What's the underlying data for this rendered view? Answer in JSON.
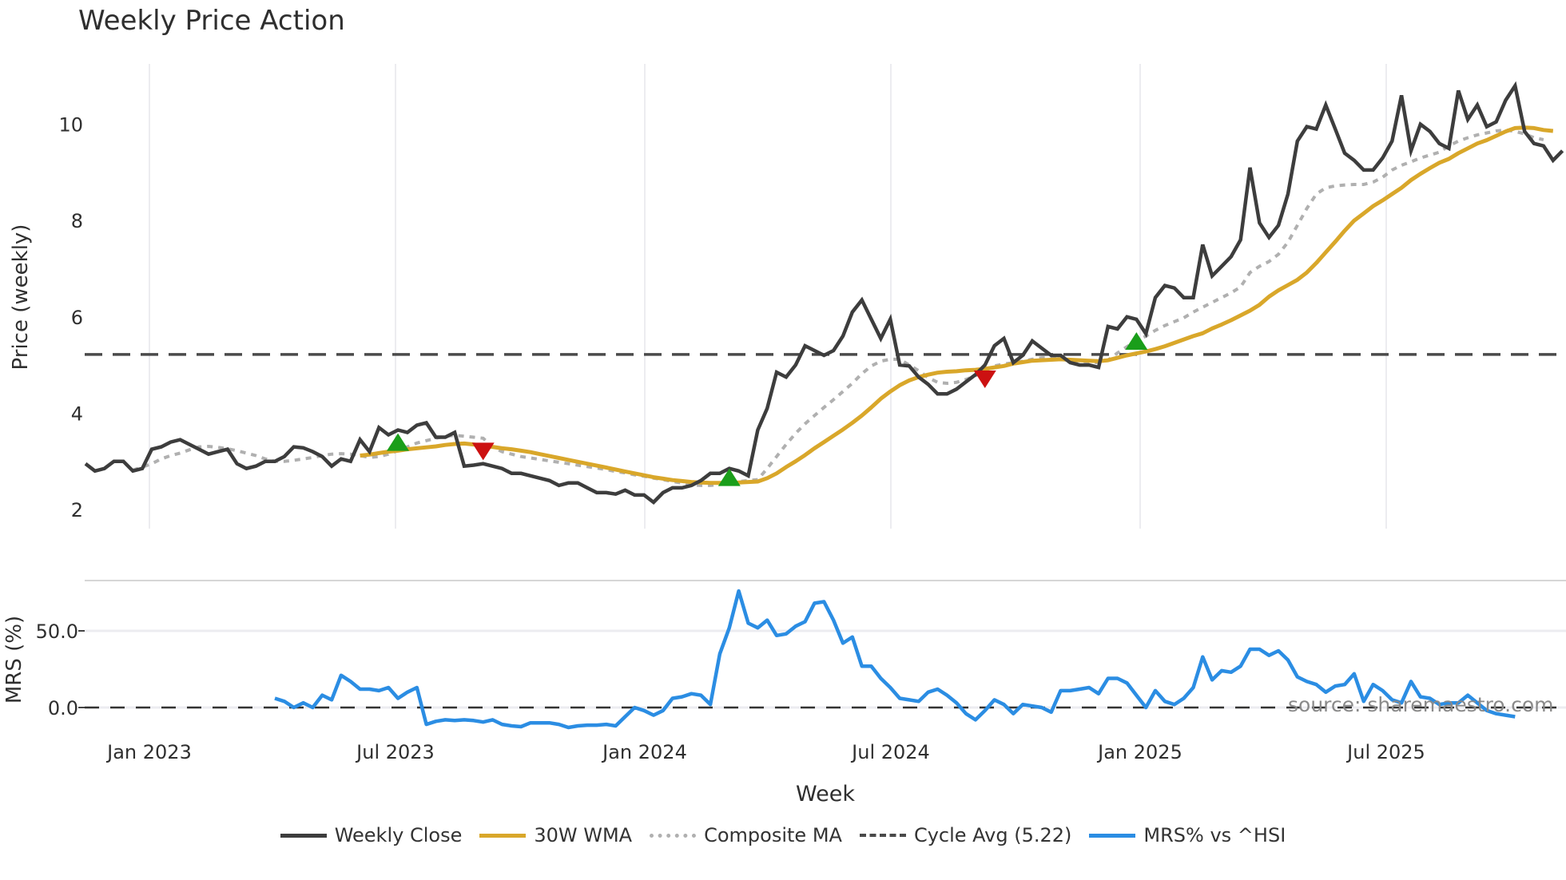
{
  "title": "Weekly Price Action",
  "source_label": "source: sharemaestro.com",
  "colors": {
    "close": "#3d3d3d",
    "wma": "#d9a72a",
    "composite": "#b0b0b0",
    "cycle": "#4a4a4a",
    "mrs": "#2b8de3",
    "buy": "#1a9e1a",
    "sell": "#cc1111",
    "grid": "#ececf0"
  },
  "legend": [
    {
      "label": "Weekly Close",
      "key": "close",
      "style": "solid"
    },
    {
      "label": "30W WMA",
      "key": "wma",
      "style": "solid"
    },
    {
      "label": "Composite MA",
      "key": "composite",
      "style": "dotted"
    },
    {
      "label": "Cycle Avg (5.22)",
      "key": "cycle",
      "style": "dashed"
    },
    {
      "label": "MRS% vs ^HSI",
      "key": "mrs",
      "style": "solid"
    }
  ],
  "chart_data": [
    {
      "type": "line",
      "title": "Weekly Price Action",
      "xlabel": "Week",
      "ylabel": "Price (weekly)",
      "x_tick_labels": [
        "Jan 2023",
        "Jul 2023",
        "Jan 2024",
        "Jul 2024",
        "Jan 2025",
        "Jul 2025"
      ],
      "y_ticks": [
        2,
        4,
        6,
        8,
        10
      ],
      "ylim": [
        1.7,
        11.2
      ],
      "grid": true,
      "legend_position": "bottom",
      "x_start": "2022-11-14",
      "x_step": "1 week",
      "cycle_avg": 5.22,
      "series": [
        {
          "name": "Weekly Close",
          "values": [
            2.95,
            2.8,
            2.85,
            3.0,
            3.0,
            2.8,
            2.85,
            3.25,
            3.3,
            3.4,
            3.45,
            3.35,
            3.25,
            3.15,
            3.2,
            3.25,
            2.95,
            2.85,
            2.9,
            3.0,
            3.0,
            3.1,
            3.3,
            3.28,
            3.2,
            3.1,
            2.9,
            3.05,
            3.0,
            3.45,
            3.2,
            3.7,
            3.55,
            3.65,
            3.6,
            3.75,
            3.8,
            3.5,
            3.5,
            3.6,
            2.9,
            2.92,
            2.95,
            2.9,
            2.85,
            2.75,
            2.75,
            2.7,
            2.65,
            2.6,
            2.5,
            2.55,
            2.55,
            2.45,
            2.35,
            2.35,
            2.32,
            2.4,
            2.3,
            2.3,
            2.15,
            2.35,
            2.45,
            2.45,
            2.5,
            2.6,
            2.75,
            2.75,
            2.85,
            2.8,
            2.7,
            3.65,
            4.1,
            4.85,
            4.75,
            5.0,
            5.4,
            5.3,
            5.2,
            5.3,
            5.6,
            6.1,
            6.35,
            5.95,
            5.55,
            5.95,
            5.0,
            4.98,
            4.75,
            4.6,
            4.4,
            4.4,
            4.5,
            4.65,
            4.8,
            5.0,
            5.4,
            5.55,
            5.05,
            5.2,
            5.5,
            5.35,
            5.2,
            5.2,
            5.05,
            5.0,
            5.0,
            4.95,
            5.8,
            5.75,
            6.0,
            5.95,
            5.65,
            6.4,
            6.65,
            6.6,
            6.4,
            6.4,
            7.5,
            6.85,
            7.05,
            7.25,
            7.6,
            9.1,
            7.95,
            7.65,
            7.9,
            8.55,
            9.65,
            9.95,
            9.9,
            10.4,
            9.9,
            9.4,
            9.25,
            9.05,
            9.05,
            9.3,
            9.65,
            10.6,
            9.45,
            10.0,
            9.85,
            9.6,
            9.5,
            10.7,
            10.1,
            10.4,
            9.95,
            10.05,
            10.5,
            10.8,
            9.85,
            9.6,
            9.55,
            9.25,
            9.45
          ]
        },
        {
          "name": "30W WMA",
          "start_index": 29,
          "values": [
            3.12,
            3.14,
            3.17,
            3.2,
            3.22,
            3.25,
            3.27,
            3.29,
            3.31,
            3.34,
            3.36,
            3.37,
            3.35,
            3.32,
            3.3,
            3.27,
            3.25,
            3.22,
            3.19,
            3.15,
            3.11,
            3.07,
            3.03,
            2.99,
            2.95,
            2.91,
            2.87,
            2.83,
            2.79,
            2.75,
            2.71,
            2.67,
            2.64,
            2.61,
            2.59,
            2.57,
            2.56,
            2.55,
            2.55,
            2.55,
            2.56,
            2.57,
            2.58,
            2.65,
            2.75,
            2.88,
            3.0,
            3.13,
            3.27,
            3.4,
            3.53,
            3.66,
            3.8,
            3.95,
            4.12,
            4.3,
            4.45,
            4.58,
            4.68,
            4.75,
            4.8,
            4.84,
            4.86,
            4.87,
            4.89,
            4.9,
            4.92,
            4.95,
            4.98,
            5.03,
            5.06,
            5.09,
            5.1,
            5.11,
            5.12,
            5.11,
            5.1,
            5.09,
            5.08,
            5.1,
            5.15,
            5.2,
            5.24,
            5.28,
            5.33,
            5.39,
            5.46,
            5.53,
            5.6,
            5.66,
            5.76,
            5.84,
            5.93,
            6.03,
            6.13,
            6.25,
            6.42,
            6.55,
            6.66,
            6.77,
            6.92,
            7.12,
            7.34,
            7.56,
            7.79,
            8.0,
            8.15,
            8.3,
            8.42,
            8.55,
            8.68,
            8.84,
            8.97,
            9.09,
            9.2,
            9.28,
            9.4,
            9.5,
            9.6,
            9.67,
            9.76,
            9.85,
            9.92,
            9.93,
            9.92,
            9.88,
            9.86
          ]
        },
        {
          "name": "Composite MA",
          "start_index": 5,
          "values": [
            2.82,
            2.88,
            2.95,
            3.05,
            3.12,
            3.17,
            3.24,
            3.3,
            3.31,
            3.29,
            3.26,
            3.22,
            3.17,
            3.12,
            3.05,
            3.0,
            3.0,
            3.02,
            3.05,
            3.08,
            3.12,
            3.15,
            3.16,
            3.15,
            3.12,
            3.08,
            3.1,
            3.15,
            3.22,
            3.3,
            3.38,
            3.43,
            3.48,
            3.52,
            3.54,
            3.52,
            3.5,
            3.48,
            3.3,
            3.2,
            3.15,
            3.1,
            3.07,
            3.04,
            3.01,
            2.98,
            2.95,
            2.92,
            2.89,
            2.86,
            2.83,
            2.79,
            2.76,
            2.72,
            2.69,
            2.65,
            2.62,
            2.58,
            2.55,
            2.51,
            2.5,
            2.5,
            2.52,
            2.55,
            2.58,
            2.6,
            2.62,
            2.85,
            3.1,
            3.35,
            3.58,
            3.78,
            3.95,
            4.12,
            4.28,
            4.45,
            4.62,
            4.82,
            4.98,
            5.08,
            5.12,
            5.12,
            5.0,
            4.88,
            4.74,
            4.64,
            4.62,
            4.64,
            4.7,
            4.78,
            4.88,
            4.98,
            5.02,
            5.05,
            5.08,
            5.12,
            5.15,
            5.15,
            5.12,
            5.1,
            5.08,
            5.06,
            5.05,
            5.1,
            5.25,
            5.38,
            5.5,
            5.6,
            5.72,
            5.82,
            5.9,
            5.98,
            6.1,
            6.2,
            6.3,
            6.4,
            6.5,
            6.62,
            6.92,
            7.05,
            7.15,
            7.3,
            7.55,
            7.9,
            8.25,
            8.55,
            8.68,
            8.72,
            8.74,
            8.75,
            8.75,
            8.8,
            8.9,
            9.05,
            9.15,
            9.22,
            9.3,
            9.36,
            9.42,
            9.55,
            9.65,
            9.72,
            9.78,
            9.82,
            9.86,
            9.88,
            9.85,
            9.8,
            9.72,
            9.68
          ]
        }
      ],
      "markers": [
        {
          "type": "buy",
          "index": 33,
          "value": 3.35
        },
        {
          "type": "sell",
          "index": 42,
          "value": 3.22
        },
        {
          "type": "buy",
          "index": 68,
          "value": 2.62
        },
        {
          "type": "sell",
          "index": 95,
          "value": 4.72
        },
        {
          "type": "buy",
          "index": 111,
          "value": 5.45
        }
      ]
    },
    {
      "type": "line",
      "title": "MRS% vs ^HSI",
      "xlabel": "Week",
      "ylabel": "MRS (%)",
      "y_ticks": [
        0.0,
        50.0
      ],
      "y_tick_labels": [
        "0.0",
        "50.0"
      ],
      "ylim": [
        -12,
        82
      ],
      "zero_line": true,
      "series": [
        {
          "name": "MRS% vs ^HSI",
          "start_index": 20,
          "values": [
            6,
            4,
            0,
            3,
            0,
            8,
            5,
            21,
            17,
            12,
            12,
            11,
            13,
            6,
            10,
            13,
            -11,
            -9,
            -8,
            -8.5,
            -8,
            -8.5,
            -9.5,
            -8,
            -11,
            -12,
            -12.5,
            -10,
            -10,
            -10,
            -11,
            -13,
            -12,
            -11.5,
            -11.5,
            -11,
            -12,
            -6,
            0,
            -2,
            -5,
            -2,
            6,
            7,
            9,
            8,
            2,
            35,
            52,
            76,
            55,
            52,
            57,
            47,
            48,
            53,
            56,
            68,
            69,
            57,
            42,
            46,
            27,
            27,
            19,
            13,
            6,
            5,
            4,
            10,
            12,
            8,
            3,
            -4,
            -8,
            -2,
            5,
            2,
            -4,
            2,
            1,
            0,
            -3,
            11,
            11,
            12,
            13,
            9,
            19,
            19,
            16,
            8,
            0,
            11,
            4,
            2,
            6,
            13,
            33,
            18,
            24,
            23,
            27,
            38,
            38,
            34,
            37,
            31,
            20,
            17,
            15,
            10,
            14,
            15,
            22,
            4,
            15,
            11,
            5,
            3,
            17,
            7,
            6,
            2,
            3,
            3,
            8,
            3,
            -2,
            -4,
            -5,
            -6
          ]
        }
      ]
    }
  ]
}
